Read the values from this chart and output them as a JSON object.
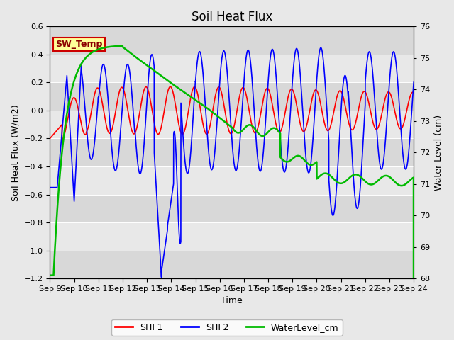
{
  "title": "Soil Heat Flux",
  "xlabel": "Time",
  "ylabel_left": "Soil Heat Flux (W/m2)",
  "ylabel_right": "Water Level (cm)",
  "ylim_left": [
    -1.2,
    0.6
  ],
  "ylim_right": [
    68.0,
    76.0
  ],
  "yticks_left": [
    -1.2,
    -1.0,
    -0.8,
    -0.6,
    -0.4,
    -0.2,
    0.0,
    0.2,
    0.4,
    0.6
  ],
  "yticks_right": [
    68.0,
    69.0,
    70.0,
    71.0,
    72.0,
    73.0,
    74.0,
    75.0,
    76.0
  ],
  "xtick_labels": [
    "Sep 9",
    "Sep 10",
    "Sep 11",
    "Sep 12",
    "Sep 13",
    "Sep 14",
    "Sep 15",
    "Sep 16",
    "Sep 17",
    "Sep 18",
    "Sep 19",
    "Sep 20",
    "Sep 21",
    "Sep 22",
    "Sep 23",
    "Sep 24"
  ],
  "legend_labels": [
    "SHF1",
    "SHF2",
    "WaterLevel_cm"
  ],
  "legend_colors": [
    "#ff0000",
    "#0000ff",
    "#00bb00"
  ],
  "annotation_text": "SW_Temp",
  "annotation_bg": "#ffff99",
  "annotation_border": "#cc0000",
  "band_colors": [
    "#d8d8d8",
    "#e8e8e8"
  ],
  "fig_bg": "#e8e8e8",
  "title_fontsize": 12,
  "axis_fontsize": 9,
  "tick_fontsize": 8,
  "legend_fontsize": 9
}
